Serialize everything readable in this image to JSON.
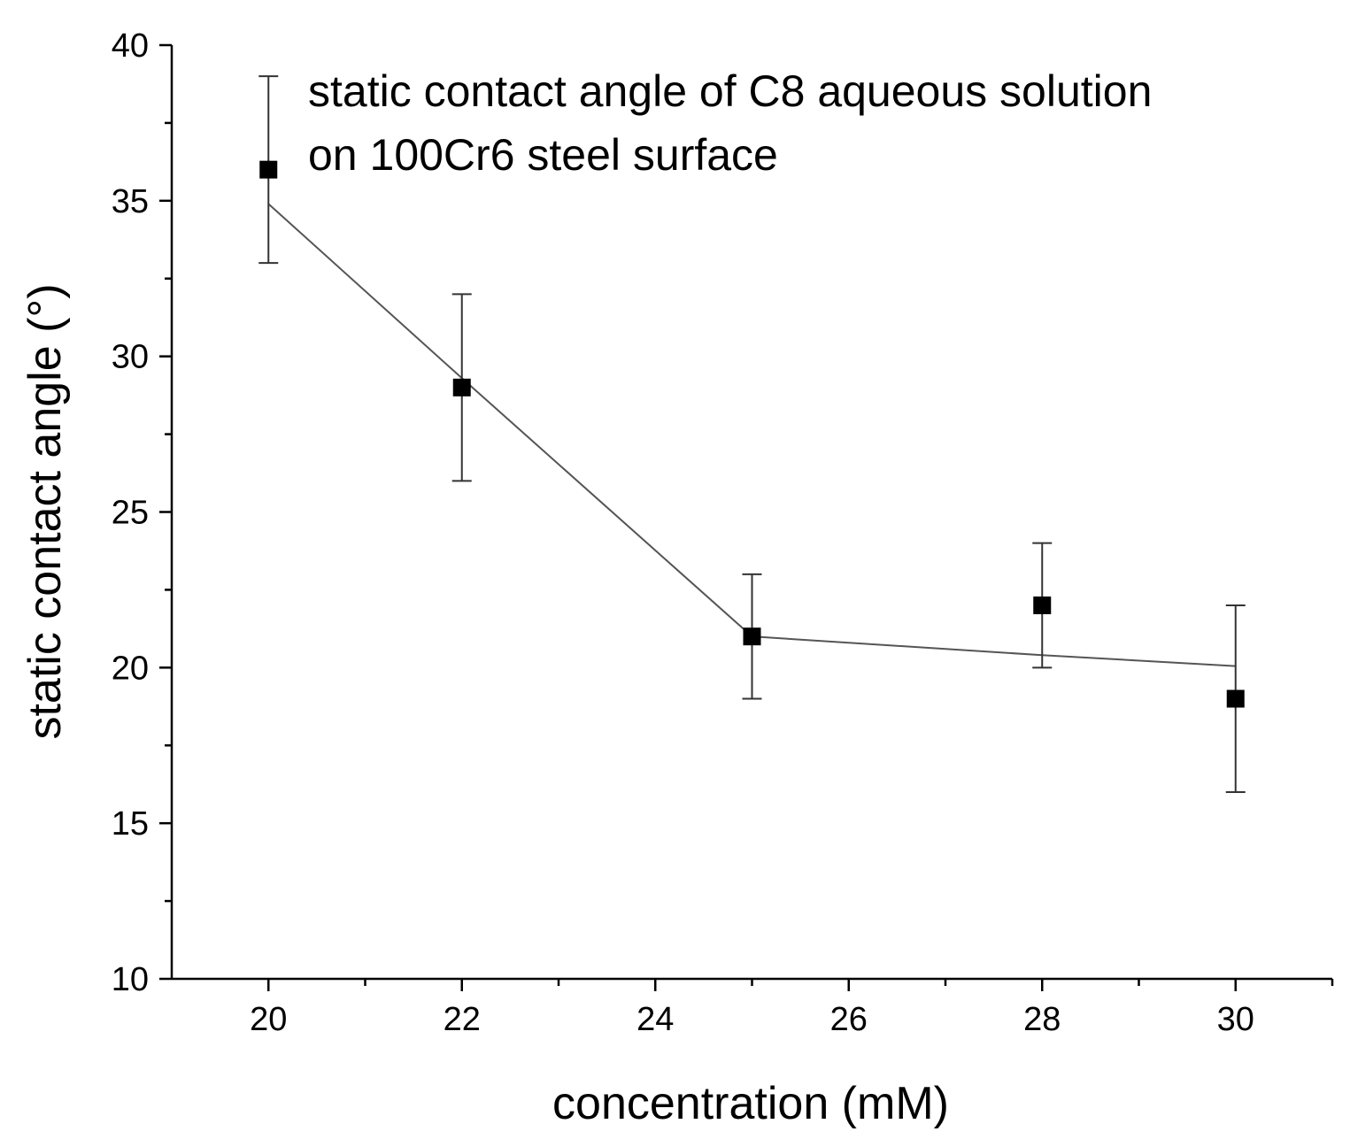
{
  "chart_data": {
    "type": "scatter",
    "xlabel": "concentration (mM)",
    "ylabel": "static contact angle (°)",
    "xlim": [
      19,
      31
    ],
    "ylim": [
      10,
      40
    ],
    "x_ticks": [
      20,
      22,
      24,
      26,
      28,
      30
    ],
    "y_ticks": [
      10,
      15,
      20,
      25,
      30,
      35,
      40
    ],
    "grid": false,
    "legend": {
      "placement": "top-left",
      "lines": [
        "static contact angle of C8 aqueous solution",
        "on 100Cr6 steel surface"
      ]
    },
    "series": [
      {
        "name": "static contact angle of C8 aqueous solution on 100Cr6 steel surface",
        "marker": "square",
        "color": "#000000",
        "x": [
          20,
          22,
          25,
          28,
          30
        ],
        "y": [
          36,
          29,
          21,
          22,
          19
        ],
        "error": [
          3,
          3,
          2,
          2,
          3
        ]
      }
    ],
    "fit_line": {
      "color": "#555555",
      "x": [
        20,
        22,
        25,
        28,
        30
      ],
      "y": [
        34.9,
        29.3,
        21.0,
        20.4,
        20.05
      ]
    }
  }
}
